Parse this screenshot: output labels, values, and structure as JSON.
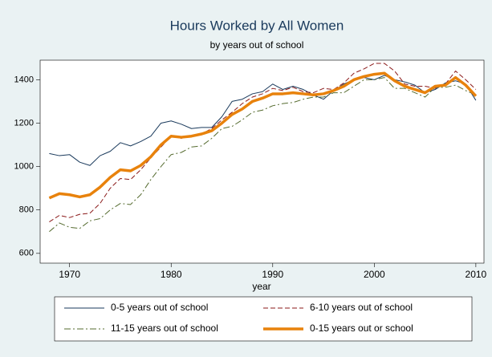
{
  "chart_data": {
    "type": "line",
    "title": "Hours Worked by All Women",
    "subtitle": "by years out of school",
    "x_label": "year",
    "x": [
      1968,
      1969,
      1970,
      1971,
      1972,
      1973,
      1974,
      1975,
      1976,
      1977,
      1978,
      1979,
      1980,
      1981,
      1982,
      1983,
      1984,
      1985,
      1986,
      1987,
      1988,
      1989,
      1990,
      1991,
      1992,
      1993,
      1994,
      1995,
      1996,
      1997,
      1998,
      1999,
      2000,
      2001,
      2002,
      2003,
      2004,
      2005,
      2006,
      2007,
      2008,
      2009,
      2010
    ],
    "series": [
      {
        "name": "0-5 years out of school",
        "color": "#1a3a5c",
        "width": 1,
        "dash": "none",
        "values": [
          1060,
          1050,
          1055,
          1020,
          1005,
          1050,
          1070,
          1110,
          1095,
          1115,
          1140,
          1200,
          1210,
          1195,
          1175,
          1180,
          1180,
          1230,
          1300,
          1310,
          1335,
          1345,
          1380,
          1355,
          1370,
          1355,
          1330,
          1310,
          1350,
          1380,
          1400,
          1410,
          1400,
          1420,
          1400,
          1390,
          1375,
          1340,
          1355,
          1385,
          1395,
          1380,
          1305
        ]
      },
      {
        "name": "6-10 years out of school",
        "color": "#8b1a1a",
        "width": 1,
        "dash": "6,3",
        "values": [
          745,
          775,
          765,
          780,
          785,
          830,
          900,
          945,
          940,
          985,
          1040,
          1090,
          1140,
          1130,
          1140,
          1150,
          1175,
          1215,
          1250,
          1290,
          1320,
          1335,
          1360,
          1350,
          1365,
          1345,
          1340,
          1360,
          1355,
          1385,
          1430,
          1450,
          1475,
          1475,
          1440,
          1380,
          1370,
          1370,
          1360,
          1380,
          1440,
          1400,
          1355
        ]
      },
      {
        "name": "11-15 years out of school",
        "color": "#556b2f",
        "width": 1,
        "dash": "8,3,2,3",
        "values": [
          700,
          740,
          720,
          715,
          750,
          760,
          800,
          830,
          825,
          870,
          940,
          1000,
          1055,
          1065,
          1090,
          1095,
          1130,
          1175,
          1185,
          1215,
          1250,
          1260,
          1280,
          1290,
          1295,
          1310,
          1320,
          1320,
          1340,
          1340,
          1370,
          1400,
          1400,
          1410,
          1360,
          1360,
          1340,
          1320,
          1365,
          1365,
          1375,
          1350,
          1330
        ]
      },
      {
        "name": "0-15 years out or school",
        "color": "#e8820c",
        "width": 3.5,
        "dash": "none",
        "values": [
          855,
          875,
          870,
          860,
          870,
          905,
          950,
          985,
          980,
          1005,
          1045,
          1100,
          1140,
          1135,
          1140,
          1150,
          1165,
          1200,
          1240,
          1265,
          1300,
          1315,
          1335,
          1335,
          1340,
          1335,
          1330,
          1335,
          1350,
          1370,
          1400,
          1415,
          1425,
          1430,
          1395,
          1370,
          1355,
          1340,
          1370,
          1375,
          1410,
          1375,
          1325
        ]
      }
    ],
    "xlim": [
      1967.1,
      2010.8
    ],
    "xticks": [
      1970,
      1980,
      1990,
      2000,
      2010
    ],
    "ylim": [
      555,
      1490
    ],
    "yticks": [
      600,
      800,
      1000,
      1200,
      1400
    ]
  }
}
